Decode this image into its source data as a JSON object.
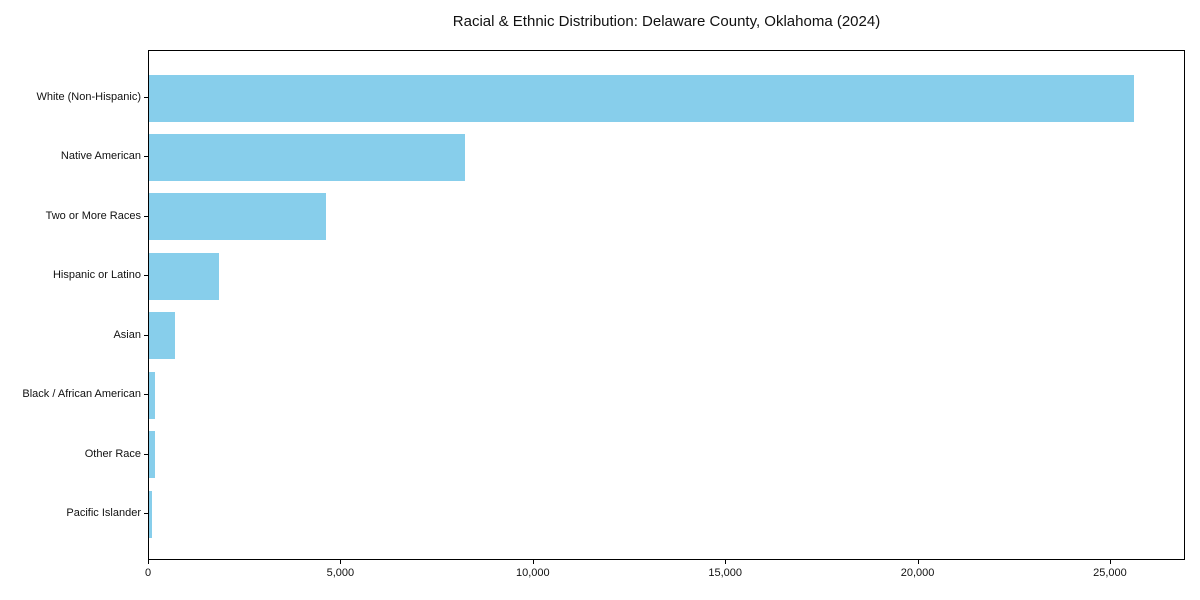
{
  "chart_data": {
    "type": "bar",
    "orientation": "horizontal",
    "title": "Racial & Ethnic Distribution: Delaware County, Oklahoma (2024)",
    "categories": [
      "White (Non-Hispanic)",
      "Native American",
      "Two or More Races",
      "Hispanic or Latino",
      "Asian",
      "Black / African American",
      "Other Race",
      "Pacific Islander"
    ],
    "values": [
      25660,
      8240,
      4600,
      1820,
      670,
      160,
      150,
      70
    ],
    "xlabel": "",
    "ylabel": "",
    "xlim": [
      0,
      26950
    ],
    "xticks": [
      0,
      5000,
      10000,
      15000,
      20000,
      25000
    ],
    "xtick_labels": [
      "0",
      "5,000",
      "10,000",
      "15,000",
      "20,000",
      "25,000"
    ],
    "bar_color": "#87CEEB",
    "axis_color": "#000000",
    "text_color": "#111111",
    "background_color": "#ffffff",
    "grid": false,
    "legend_position": "none"
  }
}
